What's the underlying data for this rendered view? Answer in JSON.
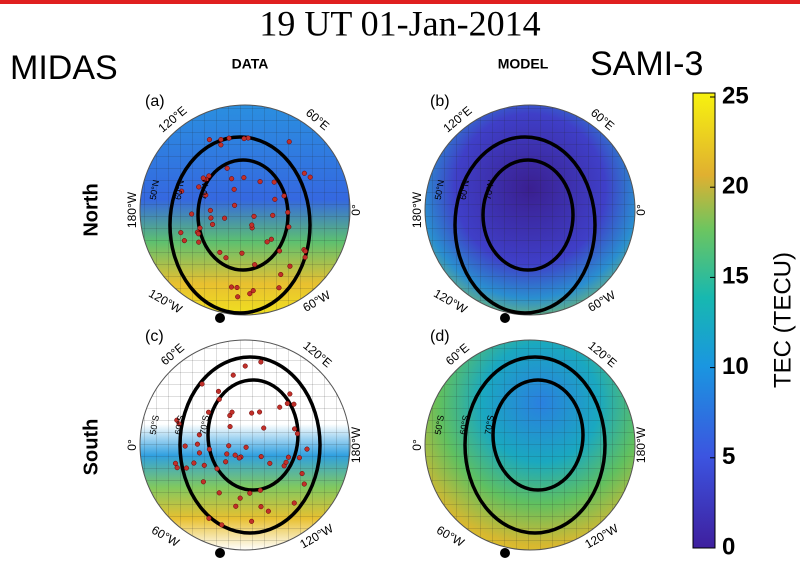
{
  "title": "19 UT 01-Jan-2014",
  "left_label": "MIDAS",
  "right_label": "SAMI-3",
  "columns": [
    "DATA",
    "MODEL"
  ],
  "rows": [
    "North",
    "South"
  ],
  "panels": [
    {
      "label": "(a)",
      "lon_labels": [
        "120°E",
        "60°E",
        "180°W",
        "0°",
        "120°W",
        "60°W"
      ],
      "lat_labels": [
        "50°N",
        "60°N",
        "70°N"
      ]
    },
    {
      "label": "(b)",
      "lon_labels": [
        "120°E",
        "60°E",
        "180°W",
        "0°",
        "120°W",
        "60°W"
      ],
      "lat_labels": [
        "50°N",
        "60°N",
        "70°N"
      ]
    },
    {
      "label": "(c)",
      "lon_labels": [
        "60°E",
        "120°E",
        "0°",
        "180°W",
        "60°W",
        "120°W"
      ],
      "lat_labels": [
        "50°S",
        "60°S",
        "70°S"
      ]
    },
    {
      "label": "(d)",
      "lon_labels": [
        "60°E",
        "120°E",
        "0°",
        "180°W",
        "60°W",
        "120°W"
      ],
      "lat_labels": [
        "50°S",
        "60°S",
        "70°S"
      ]
    }
  ],
  "colorbar": {
    "label": "TEC (TECU)",
    "lim": [
      0,
      25
    ],
    "ticks": [
      0,
      5,
      10,
      15,
      20,
      25
    ]
  }
}
